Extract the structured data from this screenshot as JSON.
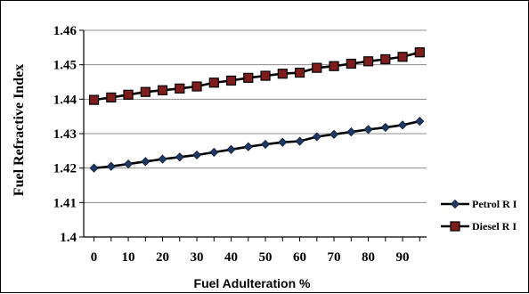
{
  "chart_data": {
    "type": "line",
    "title": "",
    "xlabel": "Fuel Adulteration %",
    "ylabel": "Fuel  Refractive Index",
    "xlim": [
      -3,
      97
    ],
    "ylim": [
      1.4,
      1.46
    ],
    "x_ticks": [
      "0",
      "10",
      "20",
      "30",
      "40",
      "50",
      "60",
      "70",
      "80",
      "90"
    ],
    "y_ticks": [
      "1.4",
      "1.41",
      "1.42",
      "1.43",
      "1.44",
      "1.45",
      "1.46"
    ],
    "grid": "horizontal",
    "legend_position": "right",
    "x": [
      0,
      5,
      10,
      15,
      20,
      25,
      30,
      35,
      40,
      45,
      50,
      55,
      60,
      65,
      70,
      75,
      80,
      85,
      90,
      95
    ],
    "series": [
      {
        "name": "Petrol R I",
        "marker": "diamond",
        "color": "#1f3864",
        "values": [
          1.42,
          1.4205,
          1.4212,
          1.4219,
          1.4226,
          1.4232,
          1.4238,
          1.4246,
          1.4254,
          1.4262,
          1.4269,
          1.4275,
          1.4278,
          1.4291,
          1.4298,
          1.4305,
          1.4312,
          1.4318,
          1.4325,
          1.4336
        ]
      },
      {
        "name": "Diesel R I",
        "marker": "square",
        "color": "#7f1d1d",
        "values": [
          1.4398,
          1.4405,
          1.4413,
          1.4421,
          1.4426,
          1.4431,
          1.4437,
          1.4448,
          1.4454,
          1.4462,
          1.4468,
          1.4474,
          1.4477,
          1.4491,
          1.4496,
          1.4503,
          1.451,
          1.4516,
          1.4523,
          1.4536
        ]
      }
    ]
  }
}
